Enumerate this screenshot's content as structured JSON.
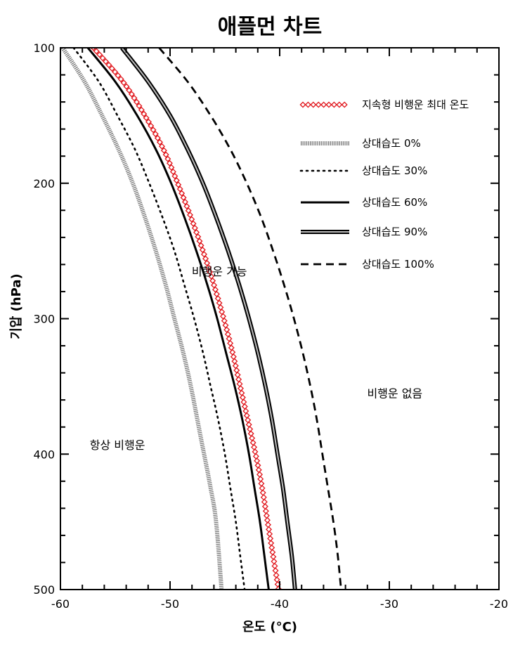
{
  "chart_data": {
    "type": "line",
    "title": "애플먼 차트",
    "xlabel": "온도 (°C)",
    "ylabel": "기압 (hPa)",
    "xlim": [
      -60,
      -20
    ],
    "ylim": [
      100,
      500
    ],
    "y_inverted": true,
    "xticks": [
      -60,
      -50,
      -40,
      -30,
      -20
    ],
    "yticks": [
      100,
      200,
      300,
      400,
      500
    ],
    "grid": false,
    "legend_position": "top-right",
    "series": [
      {
        "name": "지속형 비행운 최대 온도",
        "style": "red-diamond",
        "x": [
          -57.0,
          -54.3,
          -52.3,
          -50.6,
          -49.3,
          -48.1,
          -47.0,
          -46.0,
          -45.1,
          -44.3,
          -43.6,
          -42.9,
          -42.2,
          -41.6,
          -41.1,
          -40.6,
          -40.1
        ],
        "y": [
          100,
          125,
          150,
          175,
          200,
          225,
          250,
          275,
          300,
          325,
          350,
          375,
          400,
          425,
          450,
          475,
          500
        ]
      },
      {
        "name": "상대습도 0%",
        "style": "gray-hatched",
        "x": [
          -59.8,
          -57.8,
          -56.2,
          -54.7,
          -53.4,
          -52.3,
          -51.3,
          -50.4,
          -49.6,
          -48.8,
          -48.1,
          -47.5,
          -46.9,
          -46.3,
          -45.8,
          -45.3
        ],
        "y": [
          100,
          125,
          150,
          175,
          200,
          225,
          250,
          275,
          300,
          325,
          350,
          375,
          400,
          425,
          450,
          500
        ]
      },
      {
        "name": "상대습도 30%",
        "style": "dotted",
        "x": [
          -58.8,
          -56.5,
          -54.8,
          -53.2,
          -51.9,
          -50.7,
          -49.6,
          -48.7,
          -47.8,
          -47.0,
          -46.3,
          -45.6,
          -45.0,
          -44.5,
          -44.0,
          -43.6,
          -43.2
        ],
        "y": [
          100,
          125,
          150,
          175,
          200,
          225,
          250,
          275,
          300,
          325,
          350,
          375,
          400,
          425,
          450,
          475,
          500
        ]
      },
      {
        "name": "상대습도 60%",
        "style": "solid",
        "x": [
          -57.5,
          -55.0,
          -53.0,
          -51.3,
          -49.9,
          -48.7,
          -47.6,
          -46.6,
          -45.7,
          -44.9,
          -44.1,
          -43.4,
          -42.8,
          -42.3,
          -41.8,
          -41.4,
          -41.0
        ],
        "y": [
          100,
          125,
          150,
          175,
          200,
          225,
          250,
          275,
          300,
          325,
          350,
          375,
          400,
          425,
          450,
          475,
          500
        ]
      },
      {
        "name": "상대습도 90%",
        "style": "double",
        "x": [
          -54.4,
          -52.0,
          -50.0,
          -48.4,
          -47.0,
          -45.8,
          -44.7,
          -43.7,
          -42.8,
          -42.0,
          -41.3,
          -40.7,
          -40.2,
          -39.7,
          -39.3,
          -38.9,
          -38.6
        ],
        "y": [
          100,
          125,
          150,
          175,
          200,
          225,
          250,
          275,
          300,
          325,
          350,
          375,
          400,
          425,
          450,
          475,
          500
        ]
      },
      {
        "name": "상대습도 100%",
        "style": "dashed",
        "x": [
          -51.0,
          -48.4,
          -46.3,
          -44.5,
          -43.0,
          -41.7,
          -40.6,
          -39.6,
          -38.7,
          -37.9,
          -37.2,
          -36.6,
          -36.1,
          -35.6,
          -35.1,
          -34.7,
          -34.4
        ],
        "y": [
          100,
          125,
          150,
          175,
          200,
          225,
          250,
          275,
          300,
          325,
          350,
          375,
          400,
          425,
          450,
          475,
          500
        ]
      }
    ],
    "annotations": [
      {
        "text": "비행운 가능",
        "x": -45.5,
        "y": 265
      },
      {
        "text": "비행운 없음",
        "x": -29.5,
        "y": 355
      },
      {
        "text": "항상 비행운",
        "x": -54.8,
        "y": 393
      }
    ]
  }
}
